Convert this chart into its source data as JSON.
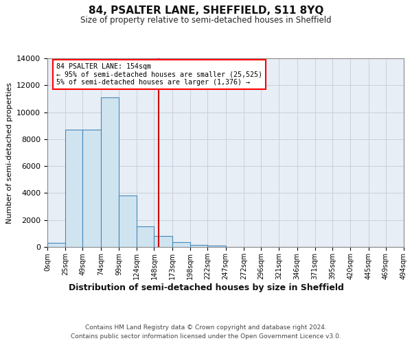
{
  "title": "84, PSALTER LANE, SHEFFIELD, S11 8YQ",
  "subtitle": "Size of property relative to semi-detached houses in Sheffield",
  "xlabel": "Distribution of semi-detached houses by size in Sheffield",
  "ylabel": "Number of semi-detached properties",
  "footer_line1": "Contains HM Land Registry data © Crown copyright and database right 2024.",
  "footer_line2": "Contains public sector information licensed under the Open Government Licence v3.0.",
  "annotation_line1": "84 PSALTER LANE: 154sqm",
  "annotation_line2": "← 95% of semi-detached houses are smaller (25,525)",
  "annotation_line3": "5% of semi-detached houses are larger (1,376) →",
  "property_size": 154,
  "bin_edges": [
    0,
    25,
    49,
    74,
    99,
    124,
    148,
    173,
    198,
    222,
    247,
    272,
    296,
    321,
    346,
    371,
    395,
    420,
    445,
    469,
    494
  ],
  "bar_heights": [
    300,
    8700,
    8700,
    11100,
    3800,
    1550,
    800,
    380,
    150,
    100,
    0,
    0,
    0,
    0,
    0,
    0,
    0,
    0,
    0,
    0
  ],
  "bar_color": "#d0e4f0",
  "bar_edge_color": "#4488bb",
  "vline_color": "#cc0000",
  "ylim": [
    0,
    14000
  ],
  "yticks": [
    0,
    2000,
    4000,
    6000,
    8000,
    10000,
    12000,
    14000
  ],
  "grid_color": "#c8d0dc",
  "plot_bg_color": "#e8eef5",
  "fig_bg_color": "#ffffff"
}
